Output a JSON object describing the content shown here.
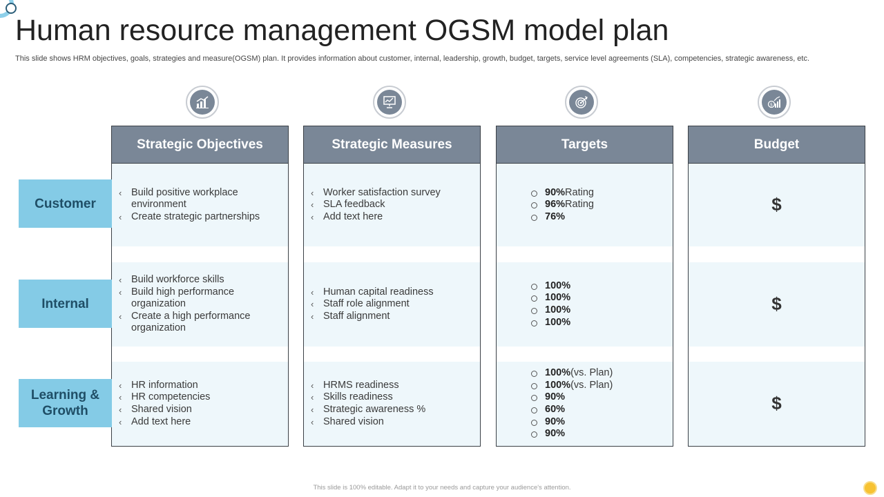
{
  "title": "Human resource management OGSM model plan",
  "subtitle": "This slide shows HRM objectives, goals, strategies and measure(OGSM) plan. It provides information about customer, internal, leadership, growth, budget, targets, service level agreements (SLA), competencies, strategic awareness, etc.",
  "icons": [
    "growth-chart-icon",
    "presentation-board-icon",
    "target-arrow-icon",
    "money-growth-icon"
  ],
  "colors": {
    "header": "#7a8797",
    "row_label": "#84cbe6",
    "row_label_text": "#1f4e66",
    "cell_bg": "#eef7fb"
  },
  "rows": [
    "Customer",
    "Internal",
    "Learning & Growth"
  ],
  "columns": {
    "objectives": {
      "header": "Strategic Objectives",
      "cells": [
        [
          "Build positive workplace environment",
          "Create strategic partnerships"
        ],
        [
          "Build workforce skills",
          "Build high performance organization",
          "Create a high performance organization"
        ],
        [
          "HR information",
          "HR competencies",
          "Shared vision",
          "Add text here"
        ]
      ]
    },
    "measures": {
      "header": "Strategic Measures",
      "cells": [
        [
          "Worker satisfaction survey",
          "SLA feedback",
          "Add text here"
        ],
        [
          "Human capital readiness",
          "Staff role alignment",
          "Staff alignment"
        ],
        [
          "HRMS readiness",
          "Skills readiness",
          "Strategic awareness %",
          "Shared vision"
        ]
      ]
    },
    "targets": {
      "header": "Targets",
      "cells": [
        [
          {
            "v": "90%",
            "s": " Rating"
          },
          {
            "v": "96%",
            "s": " Rating"
          },
          {
            "v": "76%",
            "s": ""
          }
        ],
        [
          {
            "v": "100%",
            "s": ""
          },
          {
            "v": "100%",
            "s": ""
          },
          {
            "v": "100%",
            "s": ""
          },
          {
            "v": "100%",
            "s": ""
          }
        ],
        [
          {
            "v": "100%",
            "s": "(vs. Plan)"
          },
          {
            "v": "100%",
            "s": "(vs. Plan)"
          },
          {
            "v": "90%",
            "s": ""
          },
          {
            "v": "60%",
            "s": ""
          },
          {
            "v": "90%",
            "s": ""
          },
          {
            "v": "90%",
            "s": ""
          }
        ]
      ]
    },
    "budget": {
      "header": "Budget",
      "cells": [
        "$",
        "$",
        "$"
      ]
    }
  },
  "bullet_marker": "‹",
  "footer": "This slide is 100% editable. Adapt it to your needs and capture your audience's attention."
}
